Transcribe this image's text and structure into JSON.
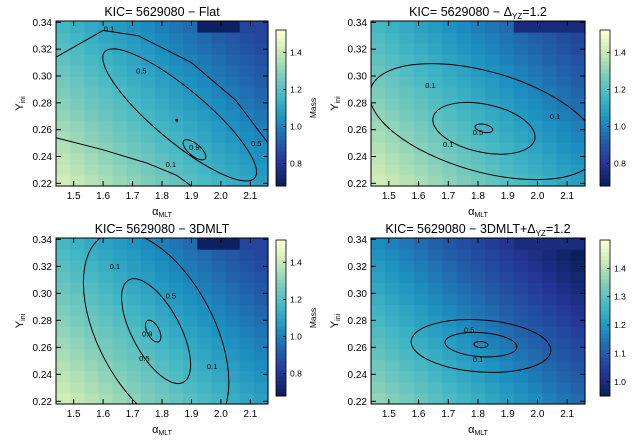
{
  "chart_data": [
    {
      "type": "heatmap",
      "title": "KIC= 5629080 − Flat",
      "xlabel": "α",
      "xlabel_sub": "MLT",
      "ylabel": "Y",
      "ylabel_sub": "ini",
      "xlim": [
        1.44,
        2.16
      ],
      "ylim": [
        0.218,
        0.341
      ],
      "xticks": [
        "1.5",
        "1.6",
        "1.7",
        "1.8",
        "1.9",
        "2.0",
        "2.1"
      ],
      "yticks": [
        "0.22",
        "0.24",
        "0.26",
        "0.28",
        "0.30",
        "0.32",
        "0.34"
      ],
      "colorbar": {
        "label": "Mass",
        "range": [
          0.68,
          1.52
        ],
        "ticks": [
          "0.8",
          "1.0",
          "1.2",
          "1.4"
        ]
      },
      "contour_labels": [
        "0.1",
        "0.5",
        "0.9",
        "0.5",
        "0.1"
      ],
      "marker": {
        "x": 1.85,
        "y": 0.267
      }
    },
    {
      "type": "heatmap",
      "title": "KIC= 5629080 − Δ",
      "title_sub": "YZ",
      "title_suffix": "=1.2",
      "xlabel": "α",
      "xlabel_sub": "MLT",
      "ylabel": "Y",
      "ylabel_sub": "ini",
      "xlim": [
        1.44,
        2.16
      ],
      "ylim": [
        0.218,
        0.341
      ],
      "xticks": [
        "1.5",
        "1.6",
        "1.7",
        "1.8",
        "1.9",
        "2.0",
        "2.1"
      ],
      "yticks": [
        "0.22",
        "0.24",
        "0.26",
        "0.28",
        "0.30",
        "0.32",
        "0.34"
      ],
      "colorbar": {
        "label": "",
        "range": [
          0.68,
          1.52
        ],
        "ticks": [
          "0.8",
          "1.0",
          "1.2",
          "1.4"
        ]
      },
      "contour_labels": [
        "0.1",
        "0.5",
        "0.1",
        "0.1"
      ]
    },
    {
      "type": "heatmap",
      "title": "KIC= 5629080 − 3DMLT",
      "xlabel": "α",
      "xlabel_sub": "MLT",
      "ylabel": "Y",
      "ylabel_sub": "ini",
      "xlim": [
        1.44,
        2.16
      ],
      "ylim": [
        0.218,
        0.341
      ],
      "xticks": [
        "1.5",
        "1.6",
        "1.7",
        "1.8",
        "1.9",
        "2.0",
        "2.1"
      ],
      "yticks": [
        "0.22",
        "0.24",
        "0.26",
        "0.28",
        "0.30",
        "0.32",
        "0.34"
      ],
      "colorbar": {
        "label": "Mass",
        "range": [
          0.68,
          1.52
        ],
        "ticks": [
          "0.8",
          "1.0",
          "1.2",
          "1.4"
        ]
      },
      "contour_labels": [
        "0.1",
        "0.5",
        "0.9",
        "0.5",
        "0.1"
      ]
    },
    {
      "type": "heatmap",
      "title": "KIC= 5629080 − 3DMLT+Δ",
      "title_sub": "YZ",
      "title_suffix": "=1.2",
      "xlabel": "α",
      "xlabel_sub": "MLT",
      "ylabel": "Y",
      "ylabel_sub": "ini",
      "xlim": [
        1.44,
        2.16
      ],
      "ylim": [
        0.218,
        0.341
      ],
      "xticks": [
        "1.5",
        "1.6",
        "1.7",
        "1.8",
        "1.9",
        "2.0",
        "2.1"
      ],
      "yticks": [
        "0.22",
        "0.24",
        "0.26",
        "0.28",
        "0.30",
        "0.32",
        "0.34"
      ],
      "colorbar": {
        "label": "",
        "range": [
          0.95,
          1.5
        ],
        "ticks": [
          "1.0",
          "1.1",
          "1.2",
          "1.3",
          "1.4"
        ]
      },
      "contour_labels": [
        "0.5",
        "0.1"
      ]
    }
  ],
  "colors": {
    "colormap": [
      "#081d58",
      "#253494",
      "#225ea8",
      "#1d91c0",
      "#41b6c4",
      "#7fcdbb",
      "#c7e9b4",
      "#ffffd9"
    ],
    "contour": "#000000"
  }
}
